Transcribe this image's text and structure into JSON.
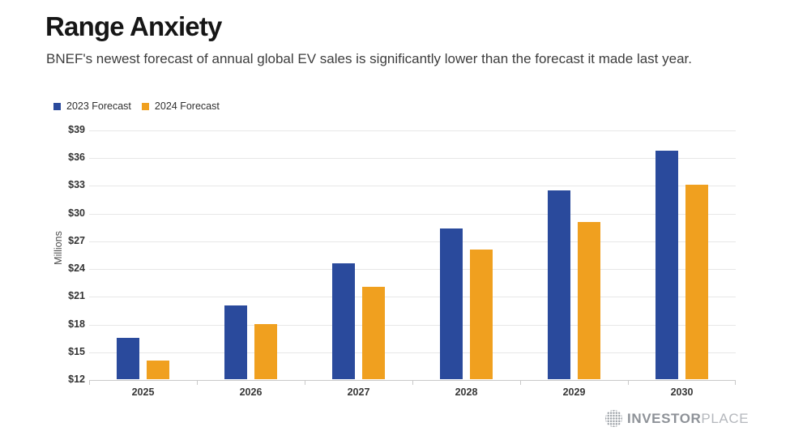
{
  "header": {
    "title": "Range Anxiety",
    "subtitle": "BNEF's newest forecast of annual global EV sales is significantly lower than the forecast it made last year."
  },
  "legend": [
    {
      "label": "2023 Forecast",
      "color": "#2a4a9c"
    },
    {
      "label": "2024 Forecast",
      "color": "#f0a01f"
    }
  ],
  "chart_data": {
    "type": "bar",
    "title": "Range Anxiety",
    "subtitle": "BNEF's newest forecast of annual global EV sales is significantly lower than the forecast it made last year.",
    "categories": [
      "2025",
      "2026",
      "2027",
      "2028",
      "2029",
      "2030"
    ],
    "series": [
      {
        "name": "2023 Forecast",
        "color": "#2a4a9c",
        "values": [
          16.5,
          20.0,
          24.5,
          28.3,
          32.4,
          36.7
        ]
      },
      {
        "name": "2024 Forecast",
        "color": "#f0a01f",
        "values": [
          14.0,
          18.0,
          22.0,
          26.0,
          29.0,
          33.0
        ]
      }
    ],
    "xlabel": "",
    "ylabel": "Millions",
    "ylim": [
      12,
      39
    ],
    "y_tick_step": 3,
    "y_ticks": [
      "$39",
      "$36",
      "$33",
      "$30",
      "$27",
      "$24",
      "$21",
      "$18",
      "$15",
      "$12"
    ],
    "grid": true,
    "legend_position": "top-left"
  },
  "footer": {
    "logo_icon": "globe-dots-icon",
    "logo_bold": "INVESTOR",
    "logo_light": "PLACE"
  },
  "colors": {
    "background": "#ffffff",
    "gridline": "#e7e7e7",
    "axis": "#c9c9c9",
    "title_text": "#161616",
    "subtitle_text": "#3d3d3d",
    "tick_text": "#333333"
  }
}
